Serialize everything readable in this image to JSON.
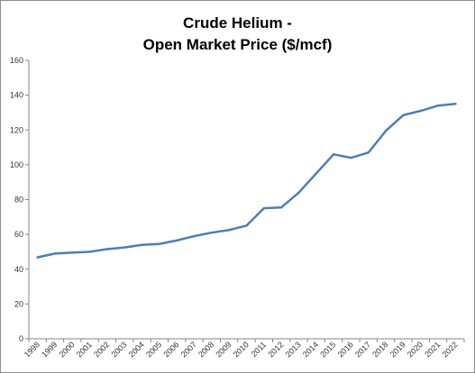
{
  "chart_data": {
    "type": "line",
    "title_lines": [
      "Crude Helium -",
      "Open Market Price ($/mcf)"
    ],
    "xlabel": "",
    "ylabel": "",
    "ylim": [
      0,
      160
    ],
    "yticks": [
      0,
      20,
      40,
      60,
      80,
      100,
      120,
      140,
      160
    ],
    "grid": false,
    "legend": "none",
    "line_color": "#4a7ebb",
    "categories": [
      "1998",
      "1999",
      "2000",
      "2001",
      "2002",
      "2003",
      "2004",
      "2005",
      "2006",
      "2007",
      "2008",
      "2009",
      "2010",
      "2011",
      "2012",
      "2013",
      "2014",
      "2015",
      "2016",
      "2017",
      "2018",
      "2019",
      "2020",
      "2021",
      "2022"
    ],
    "series": [
      {
        "values": [
          46.8,
          49,
          49.5,
          50,
          51.5,
          52.5,
          54,
          54.5,
          56.5,
          59,
          61,
          62.5,
          65,
          75,
          75.5,
          84,
          95,
          106,
          104,
          107,
          119.5,
          128.5,
          131,
          134,
          135
        ]
      }
    ]
  }
}
